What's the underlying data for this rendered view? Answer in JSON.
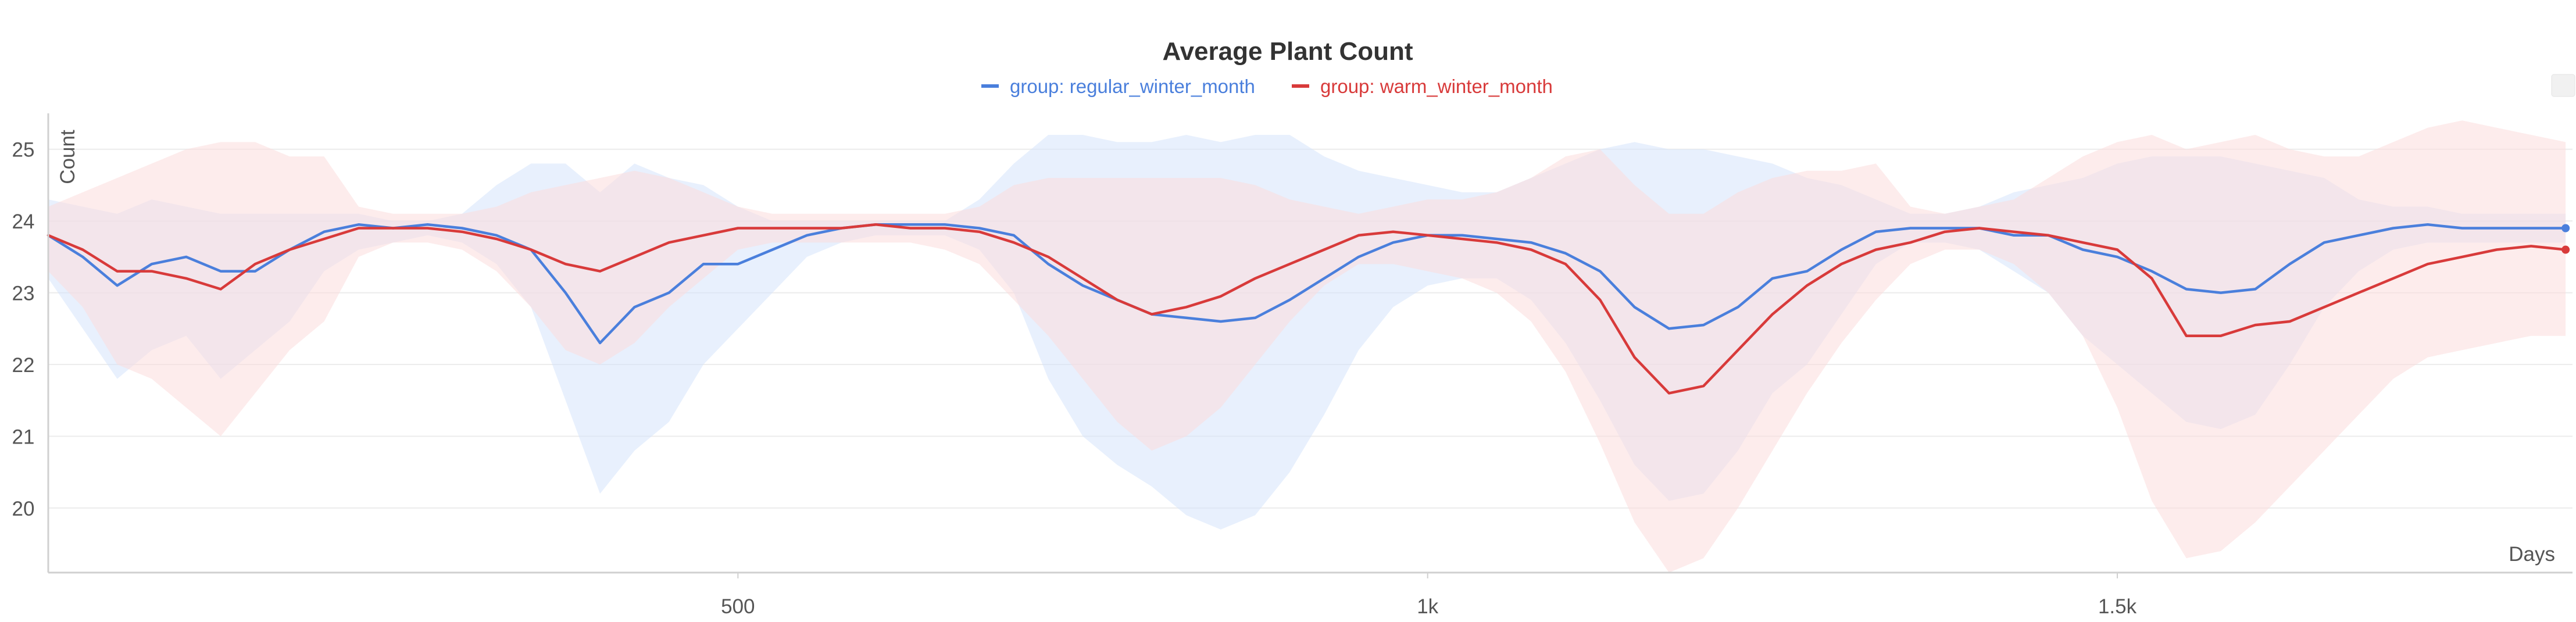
{
  "chart_data": {
    "type": "line",
    "title": "Average Plant Count",
    "xlabel": "Days",
    "ylabel": "Count",
    "xlim": [
      0,
      1830
    ],
    "ylim": [
      19.1,
      25.5
    ],
    "x_ticks": [
      500,
      1000,
      1500
    ],
    "x_tick_labels": [
      "500",
      "1k",
      "1.5k"
    ],
    "y_ticks": [
      20,
      21,
      22,
      23,
      24,
      25
    ],
    "y_tick_labels": [
      "20",
      "21",
      "22",
      "23",
      "24",
      "25"
    ],
    "grid": true,
    "legend_position": "top-center",
    "series": [
      {
        "name": "group: regular_winter_month",
        "color": "#4a7fdc",
        "band_color": "#d6e3fb",
        "x": [
          0,
          25,
          50,
          75,
          100,
          125,
          150,
          175,
          200,
          225,
          250,
          275,
          300,
          325,
          350,
          375,
          400,
          425,
          450,
          475,
          500,
          525,
          550,
          575,
          600,
          625,
          650,
          675,
          700,
          725,
          750,
          775,
          800,
          825,
          850,
          875,
          900,
          925,
          950,
          975,
          1000,
          1025,
          1050,
          1075,
          1100,
          1125,
          1150,
          1175,
          1200,
          1225,
          1250,
          1275,
          1300,
          1325,
          1350,
          1375,
          1400,
          1425,
          1450,
          1475,
          1500,
          1525,
          1550,
          1575,
          1600,
          1625,
          1650,
          1675,
          1700,
          1725,
          1750,
          1775,
          1800,
          1825
        ],
        "y": [
          23.8,
          23.5,
          23.1,
          23.4,
          23.5,
          23.3,
          23.3,
          23.6,
          23.85,
          23.95,
          23.9,
          23.95,
          23.9,
          23.8,
          23.6,
          23.0,
          22.3,
          22.8,
          23.0,
          23.4,
          23.4,
          23.6,
          23.8,
          23.9,
          23.95,
          23.95,
          23.95,
          23.9,
          23.8,
          23.4,
          23.1,
          22.9,
          22.7,
          22.65,
          22.6,
          22.65,
          22.9,
          23.2,
          23.5,
          23.7,
          23.8,
          23.8,
          23.75,
          23.7,
          23.55,
          23.3,
          22.8,
          22.5,
          22.55,
          22.8,
          23.2,
          23.3,
          23.6,
          23.85,
          23.9,
          23.9,
          23.9,
          23.8,
          23.8,
          23.6,
          23.5,
          23.3,
          23.05,
          23.0,
          23.05,
          23.4,
          23.7,
          23.8,
          23.9,
          23.95,
          23.9,
          23.9,
          23.9,
          23.9
        ],
        "lower": [
          23.2,
          22.5,
          21.8,
          22.2,
          22.4,
          21.8,
          22.2,
          22.6,
          23.3,
          23.6,
          23.7,
          23.8,
          23.7,
          23.4,
          22.8,
          21.5,
          20.2,
          20.8,
          21.2,
          22.0,
          22.5,
          23.0,
          23.5,
          23.7,
          23.8,
          23.8,
          23.8,
          23.6,
          23.0,
          21.8,
          21.0,
          20.6,
          20.3,
          19.9,
          19.7,
          19.9,
          20.5,
          21.3,
          22.2,
          22.8,
          23.1,
          23.2,
          23.2,
          22.9,
          22.3,
          21.5,
          20.6,
          20.1,
          20.2,
          20.8,
          21.6,
          22.0,
          22.7,
          23.4,
          23.7,
          23.7,
          23.6,
          23.3,
          23.0,
          22.4,
          22.0,
          21.6,
          21.2,
          21.1,
          21.3,
          22.0,
          22.8,
          23.3,
          23.6,
          23.7,
          23.7,
          23.7,
          23.7,
          23.7
        ],
        "upper": [
          24.3,
          24.2,
          24.1,
          24.3,
          24.2,
          24.1,
          24.1,
          24.1,
          24.1,
          24.1,
          24.0,
          24.0,
          24.1,
          24.5,
          24.8,
          24.8,
          24.4,
          24.8,
          24.6,
          24.5,
          24.2,
          24.0,
          24.0,
          24.0,
          24.0,
          24.0,
          24.0,
          24.3,
          24.8,
          25.2,
          25.2,
          25.1,
          25.1,
          25.2,
          25.1,
          25.2,
          25.2,
          24.9,
          24.7,
          24.6,
          24.5,
          24.4,
          24.4,
          24.6,
          24.8,
          25.0,
          25.1,
          25.0,
          25.0,
          24.9,
          24.8,
          24.6,
          24.5,
          24.3,
          24.1,
          24.1,
          24.2,
          24.4,
          24.5,
          24.6,
          24.8,
          24.9,
          24.9,
          24.9,
          24.8,
          24.7,
          24.6,
          24.3,
          24.2,
          24.2,
          24.1,
          24.1,
          24.1,
          24.1
        ]
      },
      {
        "name": "group: warm_winter_month",
        "color": "#d83a3a",
        "band_color": "#fbdcdc",
        "x": [
          0,
          25,
          50,
          75,
          100,
          125,
          150,
          175,
          200,
          225,
          250,
          275,
          300,
          325,
          350,
          375,
          400,
          425,
          450,
          475,
          500,
          525,
          550,
          575,
          600,
          625,
          650,
          675,
          700,
          725,
          750,
          775,
          800,
          825,
          850,
          875,
          900,
          925,
          950,
          975,
          1000,
          1025,
          1050,
          1075,
          1100,
          1125,
          1150,
          1175,
          1200,
          1225,
          1250,
          1275,
          1300,
          1325,
          1350,
          1375,
          1400,
          1425,
          1450,
          1475,
          1500,
          1525,
          1550,
          1575,
          1600,
          1625,
          1650,
          1675,
          1700,
          1725,
          1750,
          1775,
          1800,
          1825
        ],
        "y": [
          23.8,
          23.6,
          23.3,
          23.3,
          23.2,
          23.05,
          23.4,
          23.6,
          23.75,
          23.9,
          23.9,
          23.9,
          23.85,
          23.75,
          23.6,
          23.4,
          23.3,
          23.5,
          23.7,
          23.8,
          23.9,
          23.9,
          23.9,
          23.9,
          23.95,
          23.9,
          23.9,
          23.85,
          23.7,
          23.5,
          23.2,
          22.9,
          22.7,
          22.8,
          22.95,
          23.2,
          23.4,
          23.6,
          23.8,
          23.85,
          23.8,
          23.75,
          23.7,
          23.6,
          23.4,
          22.9,
          22.1,
          21.6,
          21.7,
          22.2,
          22.7,
          23.1,
          23.4,
          23.6,
          23.7,
          23.85,
          23.9,
          23.85,
          23.8,
          23.7,
          23.6,
          23.2,
          22.4,
          22.4,
          22.55,
          22.6,
          22.8,
          23.0,
          23.2,
          23.4,
          23.5,
          23.6,
          23.65,
          23.6
        ],
        "lower": [
          23.3,
          22.8,
          22.0,
          21.8,
          21.4,
          21.0,
          21.6,
          22.2,
          22.6,
          23.5,
          23.7,
          23.7,
          23.6,
          23.3,
          22.8,
          22.2,
          22.0,
          22.3,
          22.8,
          23.2,
          23.6,
          23.7,
          23.7,
          23.7,
          23.7,
          23.7,
          23.6,
          23.4,
          22.9,
          22.4,
          21.8,
          21.2,
          20.8,
          21.0,
          21.4,
          22.0,
          22.6,
          23.1,
          23.4,
          23.4,
          23.3,
          23.2,
          23.0,
          22.6,
          21.9,
          20.9,
          19.8,
          19.1,
          19.3,
          20.0,
          20.8,
          21.6,
          22.3,
          22.9,
          23.4,
          23.6,
          23.6,
          23.4,
          23.0,
          22.4,
          21.4,
          20.1,
          19.3,
          19.4,
          19.8,
          20.3,
          20.8,
          21.3,
          21.8,
          22.1,
          22.2,
          22.3,
          22.4,
          22.4
        ],
        "upper": [
          24.2,
          24.4,
          24.6,
          24.8,
          25.0,
          25.1,
          25.1,
          24.9,
          24.9,
          24.2,
          24.1,
          24.1,
          24.1,
          24.2,
          24.4,
          24.5,
          24.6,
          24.7,
          24.6,
          24.4,
          24.2,
          24.1,
          24.1,
          24.1,
          24.1,
          24.1,
          24.1,
          24.2,
          24.5,
          24.6,
          24.6,
          24.6,
          24.6,
          24.6,
          24.6,
          24.5,
          24.3,
          24.2,
          24.1,
          24.2,
          24.3,
          24.3,
          24.4,
          24.6,
          24.9,
          25.0,
          24.5,
          24.1,
          24.1,
          24.4,
          24.6,
          24.7,
          24.7,
          24.8,
          24.2,
          24.1,
          24.2,
          24.3,
          24.6,
          24.9,
          25.1,
          25.2,
          25.0,
          25.1,
          25.2,
          25.0,
          24.9,
          24.9,
          25.1,
          25.3,
          25.4,
          25.3,
          25.2,
          25.1
        ]
      }
    ]
  }
}
